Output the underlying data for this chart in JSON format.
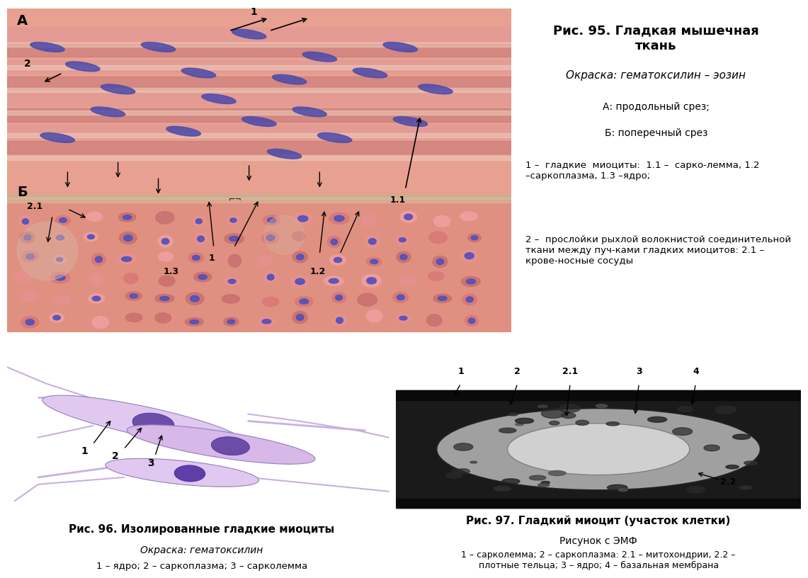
{
  "bg_color": "#ffffff",
  "fig_width": 11.21,
  "fig_height": 7.88,
  "panel_top_title": "Рис. 95. Гладкая мышечная\nткань",
  "panel_top_subtitle": "Окраска: гематоксилин – эозин",
  "panel_top_line1": "А: продольный срез;",
  "panel_top_line2": "Б: поперечный срез",
  "panel_top_desc1": "1 –  гладкие  миоциты:  1.1 –  сарко-лемма, 1.2 –саркоплазма, 1.3 –ядро;",
  "panel_top_desc2": "2 –  прослойки рыхлой волокнистой соединительной ткани между пуч-ками гладких миоцитов: 2.1 – крове-носные сосуды",
  "fig96_title": "Рис. 96. Изолированные гладкие миоциты",
  "fig96_subtitle": "Окраска: гематоксилин",
  "fig96_legend": "1 – ядро; 2 – саркоплазма; 3 – сарколемма",
  "fig97_title": "Рис. 97. Гладкий миоцит (участок клетки)",
  "fig97_subtitle": "Рисунок с ЭМФ",
  "fig97_legend": "1 – сарколемма; 2 – саркоплазма: 2.1 – митохондрии, 2.2 –\nплотные тельца; 3 – ядро; 4 – базальная мембрана",
  "label_A": "А",
  "label_B": "Б"
}
